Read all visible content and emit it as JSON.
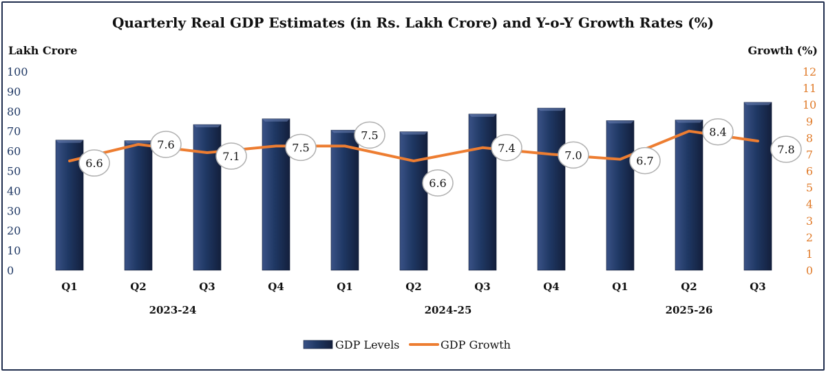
{
  "chart_data": {
    "type": "bar+line",
    "title": "Quarterly Real GDP Estimates (in Rs. Lakh Crore) and Y-o-Y Growth Rates (%)",
    "left_axis_label": "Lakh Crore",
    "right_axis_label": "Growth (%)",
    "left_ylim": [
      0,
      100
    ],
    "left_ticks": [
      "0",
      "10",
      "20",
      "30",
      "40",
      "50",
      "60",
      "70",
      "80",
      "90",
      "100"
    ],
    "right_ylim": [
      0,
      12
    ],
    "right_ticks": [
      "0",
      "1",
      "2",
      "3",
      "4",
      "5",
      "6",
      "7",
      "8",
      "9",
      "10",
      "11",
      "12"
    ],
    "categories": [
      "Q1",
      "Q2",
      "Q3",
      "Q4",
      "Q1",
      "Q2",
      "Q3",
      "Q4",
      "Q1",
      "Q2",
      "Q3"
    ],
    "groups": [
      {
        "label": "2023-24",
        "start": 0,
        "end": 3
      },
      {
        "label": "2024-25",
        "start": 4,
        "end": 7
      },
      {
        "label": "2025-26",
        "start": 8,
        "end": 10
      }
    ],
    "series": [
      {
        "name": "GDP Levels",
        "type": "bar",
        "axis": "left",
        "color": "#1f3864",
        "values": [
          65.5,
          65.2,
          73.3,
          76.2,
          70.5,
          69.7,
          78.6,
          81.6,
          75.3,
          75.6,
          84.5
        ]
      },
      {
        "name": "GDP Growth",
        "type": "line",
        "axis": "right",
        "color": "#ed7d31",
        "values": [
          6.6,
          7.6,
          7.1,
          7.5,
          7.5,
          6.6,
          7.4,
          7.0,
          6.7,
          8.4,
          7.8
        ],
        "labels": [
          "6.6",
          "7.6",
          "7.1",
          "7.5",
          "7.5",
          "6.6",
          "7.4",
          "7.0",
          "6.7",
          "8.4",
          "7.8"
        ]
      }
    ],
    "legend": {
      "position": "bottom-center",
      "items": [
        "GDP Levels",
        "GDP Growth"
      ]
    }
  }
}
